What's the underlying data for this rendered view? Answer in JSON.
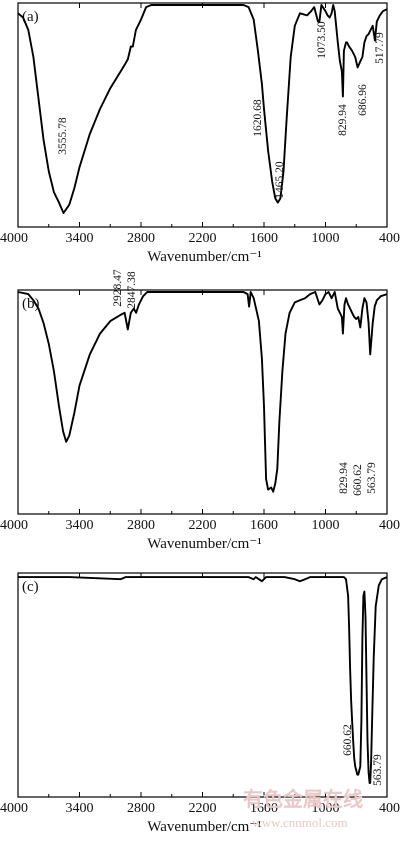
{
  "figure": {
    "watermark": {
      "cn": "有色金属在线",
      "url": "www.cnnmol.com"
    }
  },
  "chart_data": [
    {
      "type": "line",
      "panel_label": "(a)",
      "xlabel": "Wavenumber/cm⁻¹",
      "ylabel": "",
      "xlim": [
        4000,
        400
      ],
      "x_reversed": true,
      "ylim": [
        0,
        100
      ],
      "xticks": [
        "4000",
        "3400",
        "2800",
        "2200",
        "1600",
        "1000",
        "400"
      ],
      "annotations": [
        "3555.78",
        "1620.68",
        "1465.20",
        "1073.50",
        "829.94",
        "686.96",
        "517.79"
      ],
      "series": [
        {
          "name": "",
          "points": [
            [
              4000,
              96
            ],
            [
              3950,
              94
            ],
            [
              3900,
              88
            ],
            [
              3850,
              75
            ],
            [
              3800,
              55
            ],
            [
              3750,
              35
            ],
            [
              3700,
              20
            ],
            [
              3650,
              10
            ],
            [
              3600,
              5
            ],
            [
              3555.78,
              0
            ],
            [
              3500,
              4
            ],
            [
              3450,
              12
            ],
            [
              3400,
              22
            ],
            [
              3300,
              38
            ],
            [
              3200,
              50
            ],
            [
              3100,
              60
            ],
            [
              3000,
              68
            ],
            [
              2950,
              72
            ],
            [
              2928,
              74
            ],
            [
              2900,
              80
            ],
            [
              2880,
              80
            ],
            [
              2850,
              88
            ],
            [
              2800,
              93
            ],
            [
              2750,
              99
            ],
            [
              2700,
              100
            ],
            [
              2000,
              100
            ],
            [
              1800,
              100
            ],
            [
              1750,
              99
            ],
            [
              1700,
              93
            ],
            [
              1660,
              78
            ],
            [
              1640,
              70
            ],
            [
              1620.68,
              62
            ],
            [
              1600,
              50
            ],
            [
              1560,
              30
            ],
            [
              1520,
              15
            ],
            [
              1490,
              7
            ],
            [
              1465.2,
              5
            ],
            [
              1440,
              7
            ],
            [
              1410,
              20
            ],
            [
              1380,
              45
            ],
            [
              1340,
              75
            ],
            [
              1300,
              90
            ],
            [
              1250,
              96
            ],
            [
              1180,
              95
            ],
            [
              1140,
              97
            ],
            [
              1110,
              99
            ],
            [
              1073.5,
              92
            ],
            [
              1060,
              92
            ],
            [
              1040,
              100
            ],
            [
              1000,
              97
            ],
            [
              980,
              95
            ],
            [
              960,
              94
            ],
            [
              940,
              96
            ],
            [
              925,
              100
            ],
            [
              910,
              97
            ],
            [
              880,
              82
            ],
            [
              860,
              73
            ],
            [
              840,
              68
            ],
            [
              829.94,
              56
            ],
            [
              820,
              78
            ],
            [
              800,
              82
            ],
            [
              790,
              82
            ],
            [
              770,
              80
            ],
            [
              740,
              78
            ],
            [
              710,
              75
            ],
            [
              686.96,
              70
            ],
            [
              660,
              73
            ],
            [
              640,
              75
            ],
            [
              620,
              82
            ],
            [
              600,
              85
            ],
            [
              580,
              86
            ],
            [
              560,
              88
            ],
            [
              540,
              90
            ],
            [
              517.79,
              83
            ],
            [
              500,
              92
            ],
            [
              470,
              95
            ],
            [
              440,
              97
            ],
            [
              400,
              98
            ]
          ]
        }
      ]
    },
    {
      "type": "line",
      "panel_label": "(b)",
      "xlabel": "Wavenumber/cm⁻¹",
      "ylabel": "",
      "xlim": [
        4000,
        400
      ],
      "x_reversed": true,
      "ylim": [
        0,
        100
      ],
      "xticks": [
        "4000",
        "3400",
        "2800",
        "2200",
        "1600",
        "1000",
        "400"
      ],
      "annotations": [
        "2928.47",
        "2847.38",
        "829.94",
        "660.62",
        "563.79"
      ],
      "series": [
        {
          "name": "",
          "points": [
            [
              4000,
              100
            ],
            [
              3900,
              99
            ],
            [
              3850,
              96
            ],
            [
              3800,
              92
            ],
            [
              3750,
              85
            ],
            [
              3700,
              75
            ],
            [
              3650,
              62
            ],
            [
              3600,
              45
            ],
            [
              3560,
              33
            ],
            [
              3530,
              28
            ],
            [
              3500,
              31
            ],
            [
              3450,
              42
            ],
            [
              3400,
              55
            ],
            [
              3300,
              70
            ],
            [
              3200,
              80
            ],
            [
              3100,
              86
            ],
            [
              3000,
              89
            ],
            [
              2960,
              90
            ],
            [
              2928.47,
              82
            ],
            [
              2900,
              90
            ],
            [
              2870,
              92
            ],
            [
              2847.38,
              90
            ],
            [
              2820,
              94
            ],
            [
              2780,
              98
            ],
            [
              2740,
              100
            ],
            [
              1800,
              100
            ],
            [
              1760,
              99
            ],
            [
              1745,
              93
            ],
            [
              1730,
              100
            ],
            [
              1700,
              97
            ],
            [
              1650,
              86
            ],
            [
              1620,
              68
            ],
            [
              1600,
              45
            ],
            [
              1590,
              28
            ],
            [
              1580,
              10
            ],
            [
              1560,
              5
            ],
            [
              1530,
              6
            ],
            [
              1510,
              4
            ],
            [
              1490,
              8
            ],
            [
              1470,
              15
            ],
            [
              1450,
              38
            ],
            [
              1420,
              62
            ],
            [
              1390,
              80
            ],
            [
              1350,
              90
            ],
            [
              1300,
              95
            ],
            [
              1250,
              96
            ],
            [
              1200,
              97
            ],
            [
              1150,
              99
            ],
            [
              1100,
              100
            ],
            [
              1060,
              94
            ],
            [
              1030,
              96
            ],
            [
              1000,
              99
            ],
            [
              970,
              100
            ],
            [
              940,
              97
            ],
            [
              910,
              100
            ],
            [
              880,
              92
            ],
            [
              860,
              90
            ],
            [
              840,
              88
            ],
            [
              829.94,
              80
            ],
            [
              815,
              94
            ],
            [
              800,
              97
            ],
            [
              780,
              94
            ],
            [
              760,
              92
            ],
            [
              740,
              90
            ],
            [
              720,
              88
            ],
            [
              700,
              87
            ],
            [
              680,
              88
            ],
            [
              660.62,
              83
            ],
            [
              640,
              92
            ],
            [
              620,
              97
            ],
            [
              600,
              95
            ],
            [
              580,
              85
            ],
            [
              563.79,
              70
            ],
            [
              540,
              85
            ],
            [
              520,
              93
            ],
            [
              500,
              96
            ],
            [
              460,
              98
            ],
            [
              400,
              99
            ]
          ]
        }
      ]
    },
    {
      "type": "line",
      "panel_label": "(c)",
      "xlabel": "Wavenumber/cm⁻¹",
      "ylabel": "",
      "xlim": [
        4000,
        400
      ],
      "x_reversed": true,
      "ylim": [
        0,
        100
      ],
      "xticks": [
        "4000",
        "3400",
        "2800",
        "2200",
        "1600",
        "1000",
        "400"
      ],
      "annotations": [
        "660.62",
        "563.79"
      ],
      "series": [
        {
          "name": "",
          "points": [
            [
              4000,
              99
            ],
            [
              3500,
              99
            ],
            [
              3000,
              98
            ],
            [
              2950,
              99
            ],
            [
              2800,
              99
            ],
            [
              2500,
              99
            ],
            [
              2000,
              99
            ],
            [
              1750,
              99
            ],
            [
              1700,
              98
            ],
            [
              1680,
              99
            ],
            [
              1650,
              98
            ],
            [
              1620,
              97
            ],
            [
              1580,
              99
            ],
            [
              1500,
              99
            ],
            [
              1400,
              99
            ],
            [
              1300,
              98
            ],
            [
              1250,
              97
            ],
            [
              1200,
              98
            ],
            [
              1150,
              99
            ],
            [
              1100,
              99
            ],
            [
              1000,
              99
            ],
            [
              900,
              99
            ],
            [
              820,
              99
            ],
            [
              800,
              98
            ],
            [
              780,
              90
            ],
            [
              770,
              75
            ],
            [
              760,
              55
            ],
            [
              750,
              40
            ],
            [
              740,
              30
            ],
            [
              730,
              20
            ],
            [
              720,
              12
            ],
            [
              710,
              8
            ],
            [
              700,
              6
            ],
            [
              690,
              4
            ],
            [
              680,
              4
            ],
            [
              670,
              6
            ],
            [
              660.62,
              8
            ],
            [
              650,
              30
            ],
            [
              640,
              70
            ],
            [
              630,
              90
            ],
            [
              620,
              92
            ],
            [
              610,
              80
            ],
            [
              600,
              50
            ],
            [
              590,
              20
            ],
            [
              580,
              5
            ],
            [
              570,
              0
            ],
            [
              563.79,
              0
            ],
            [
              555,
              10
            ],
            [
              545,
              30
            ],
            [
              530,
              60
            ],
            [
              510,
              85
            ],
            [
              480,
              95
            ],
            [
              450,
              98
            ],
            [
              400,
              99
            ]
          ]
        }
      ]
    }
  ]
}
